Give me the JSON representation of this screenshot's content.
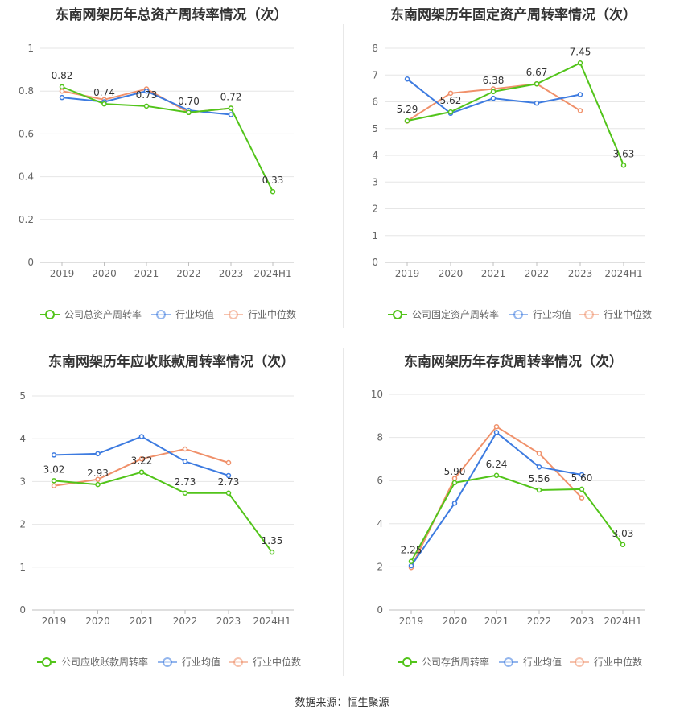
{
  "source": "数据来源：恒生聚源",
  "colors": {
    "company": "#52c41a",
    "avg": "#3d7be0",
    "median": "#f0916b",
    "grid": "#e6e6e6",
    "axis": "#bfbfbf"
  },
  "chart_data": [
    {
      "type": "line",
      "title": "东南网架历年总资产周转率情况（次）",
      "categories": [
        "2019",
        "2020",
        "2021",
        "2022",
        "2023",
        "2024H1"
      ],
      "yticks": [
        "0",
        "0.2",
        "0.4",
        "0.6",
        "0.8",
        "1"
      ],
      "ylim": [
        0,
        1
      ],
      "grid": true,
      "legend_position": "bottom",
      "series": [
        {
          "name": "公司总资产周转率",
          "key": "company",
          "values": [
            0.82,
            0.74,
            0.73,
            0.7,
            0.72,
            0.33
          ],
          "labels": [
            "0.82",
            "0.74",
            "0.73",
            "0.70",
            "0.72",
            "0.33"
          ]
        },
        {
          "name": "行业均值",
          "key": "avg",
          "values": [
            0.77,
            0.75,
            0.8,
            0.71,
            0.69,
            null
          ]
        },
        {
          "name": "行业中位数",
          "key": "median",
          "values": [
            0.8,
            0.76,
            0.81,
            0.7,
            0.72,
            null
          ]
        }
      ]
    },
    {
      "type": "line",
      "title": "东南网架历年固定资产周转率情况（次）",
      "categories": [
        "2019",
        "2020",
        "2021",
        "2022",
        "2023",
        "2024H1"
      ],
      "yticks": [
        "0",
        "1",
        "2",
        "3",
        "4",
        "5",
        "6",
        "7",
        "8"
      ],
      "ylim": [
        0,
        8
      ],
      "grid": true,
      "legend_position": "bottom",
      "series": [
        {
          "name": "公司固定资产周转率",
          "key": "company",
          "values": [
            5.29,
            5.62,
            6.38,
            6.67,
            7.45,
            3.63
          ],
          "labels": [
            "5.29",
            "5.62",
            "6.38",
            "6.67",
            "7.45",
            "3.63"
          ]
        },
        {
          "name": "行业均值",
          "key": "avg",
          "values": [
            6.85,
            5.57,
            6.13,
            5.95,
            6.27,
            null
          ]
        },
        {
          "name": "行业中位数",
          "key": "median",
          "values": [
            5.28,
            6.32,
            6.48,
            6.67,
            5.67,
            null
          ]
        }
      ]
    },
    {
      "type": "line",
      "title": "东南网架历年应收账款周转率情况（次）",
      "categories": [
        "2019",
        "2020",
        "2021",
        "2022",
        "2023",
        "2024H1"
      ],
      "yticks": [
        "0",
        "1",
        "2",
        "3",
        "4",
        "5"
      ],
      "ylim": [
        0,
        5
      ],
      "grid": true,
      "legend_position": "bottom",
      "series": [
        {
          "name": "公司应收账款周转率",
          "key": "company",
          "values": [
            3.02,
            2.93,
            3.22,
            2.73,
            2.73,
            1.35
          ],
          "labels": [
            "3.02",
            "2.93",
            "3.22",
            "2.73",
            "2.73",
            "1.35"
          ]
        },
        {
          "name": "行业均值",
          "key": "avg",
          "values": [
            3.62,
            3.65,
            4.05,
            3.47,
            3.14,
            null
          ]
        },
        {
          "name": "行业中位数",
          "key": "median",
          "values": [
            2.9,
            3.05,
            3.53,
            3.76,
            3.44,
            null
          ]
        }
      ]
    },
    {
      "type": "line",
      "title": "东南网架历年存货周转率情况（次）",
      "categories": [
        "2019",
        "2020",
        "2021",
        "2022",
        "2023",
        "2024H1"
      ],
      "yticks": [
        "0",
        "2",
        "4",
        "6",
        "8",
        "10"
      ],
      "ylim": [
        0,
        10
      ],
      "grid": true,
      "legend_position": "bottom",
      "series": [
        {
          "name": "公司存货周转率",
          "key": "company",
          "values": [
            2.25,
            5.9,
            6.24,
            5.56,
            5.6,
            3.03
          ],
          "labels": [
            "2.25",
            "5.90",
            "6.24",
            "5.56",
            "5.60",
            "3.03"
          ]
        },
        {
          "name": "行业均值",
          "key": "avg",
          "values": [
            2.05,
            4.95,
            8.23,
            6.63,
            6.27,
            null
          ]
        },
        {
          "name": "行业中位数",
          "key": "median",
          "values": [
            1.97,
            6.1,
            8.5,
            7.26,
            5.2,
            null
          ]
        }
      ]
    }
  ]
}
